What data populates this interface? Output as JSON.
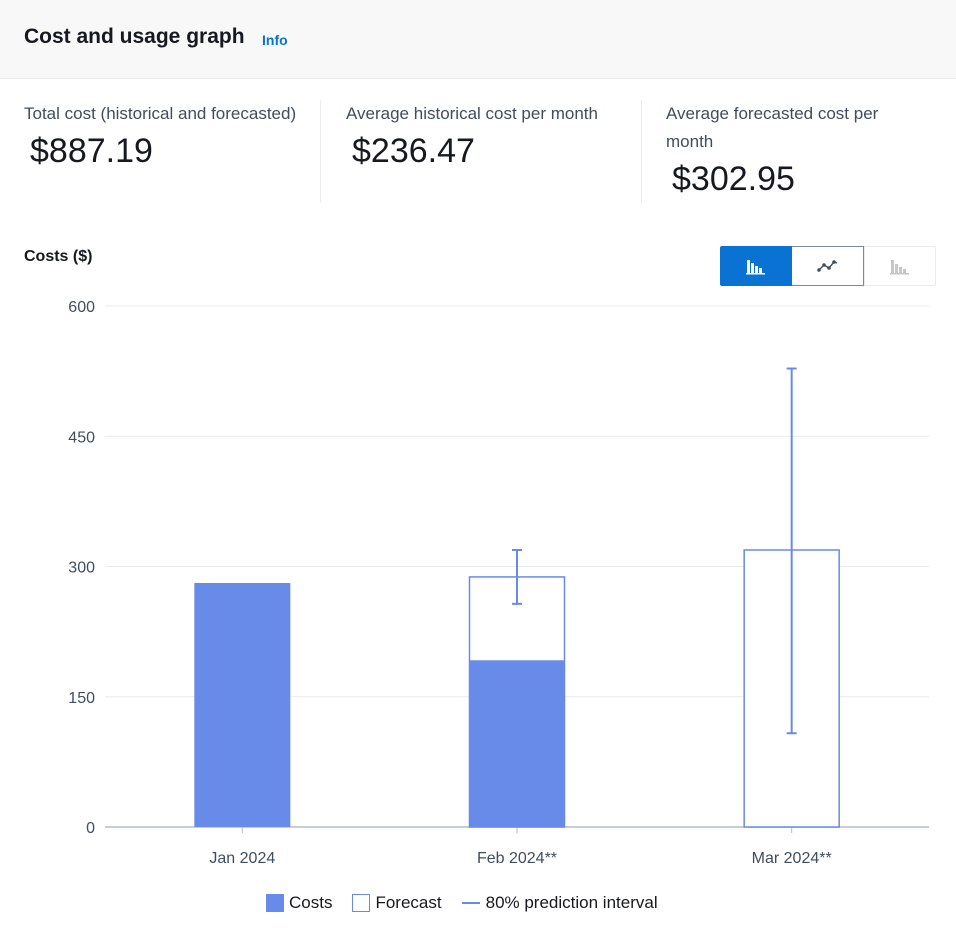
{
  "header": {
    "title": "Cost and usage graph",
    "info_link": "Info"
  },
  "summary": {
    "total": {
      "label": "Total cost (historical and forecasted)",
      "value": "$887.19"
    },
    "avg_historical": {
      "label": "Average historical cost per month",
      "value": "$236.47"
    },
    "avg_forecast": {
      "label": "Average forecasted cost per month",
      "value": "$302.95"
    }
  },
  "chart_header": {
    "title": "Costs ($)"
  },
  "view_toggle": {
    "options": [
      {
        "icon": "bar-chart-icon",
        "state": "selected"
      },
      {
        "icon": "line-chart-icon",
        "state": "enabled"
      },
      {
        "icon": "stacked-bar-chart-icon",
        "state": "disabled"
      }
    ]
  },
  "colors": {
    "series": "#688ae8",
    "grid": "#e9ebed",
    "axis": "#b6bec9",
    "tick_text": "#414d5c"
  },
  "chart_data": {
    "type": "bar",
    "title": "",
    "ylabel": "Costs ($)",
    "categories": [
      "Jan 2024",
      "Feb 2024**",
      "Mar 2024**"
    ],
    "yticks": [
      0,
      150,
      300,
      450,
      600
    ],
    "ylim": [
      0,
      600
    ],
    "grid": true,
    "legend_position": "bottom",
    "series": [
      {
        "name": "Costs",
        "style": "filled",
        "values": [
          281,
          192,
          0
        ]
      },
      {
        "name": "Forecast",
        "style": "outline",
        "values": [
          null,
          288,
          319
        ]
      },
      {
        "name": "80% prediction interval",
        "style": "error-bar",
        "values": [
          null,
          [
            257,
            319
          ],
          [
            108,
            528
          ]
        ]
      }
    ]
  },
  "legend": {
    "items": [
      {
        "label": "Costs",
        "marker": "fill"
      },
      {
        "label": "Forecast",
        "marker": "outline"
      },
      {
        "label": "80% prediction interval",
        "marker": "line"
      }
    ]
  }
}
